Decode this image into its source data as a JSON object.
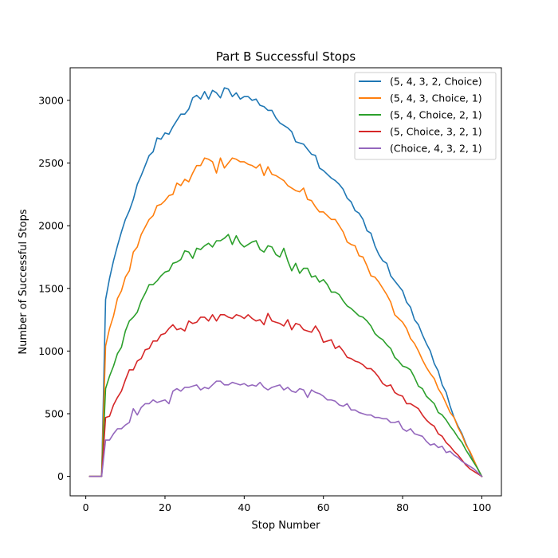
{
  "chart_data": {
    "type": "line",
    "title": "Part B Successful Stops",
    "xlabel": "Stop Number",
    "ylabel": "Number of Successful Stops",
    "xlim": [
      -3.95,
      104.95
    ],
    "ylim": [
      -155,
      3260
    ],
    "xticks": [
      0,
      20,
      40,
      60,
      80,
      100
    ],
    "yticks": [
      0,
      500,
      1000,
      1500,
      2000,
      2500,
      3000
    ],
    "legend_position": "top-right",
    "grid": false,
    "x": [
      1,
      2,
      3,
      4,
      5,
      6,
      7,
      8,
      9,
      10,
      11,
      12,
      13,
      14,
      15,
      16,
      17,
      18,
      19,
      20,
      21,
      22,
      23,
      24,
      25,
      26,
      27,
      28,
      29,
      30,
      31,
      32,
      33,
      34,
      35,
      36,
      37,
      38,
      39,
      40,
      41,
      42,
      43,
      44,
      45,
      46,
      47,
      48,
      49,
      50,
      51,
      52,
      53,
      54,
      55,
      56,
      57,
      58,
      59,
      60,
      61,
      62,
      63,
      64,
      65,
      66,
      67,
      68,
      69,
      70,
      71,
      72,
      73,
      74,
      75,
      76,
      77,
      78,
      79,
      80,
      81,
      82,
      83,
      84,
      85,
      86,
      87,
      88,
      89,
      90,
      91,
      92,
      93,
      94,
      95,
      96,
      97,
      98,
      99,
      100
    ],
    "series": [
      {
        "name": "(5, 4, 3, 2, Choice)",
        "color": "#1f77b4",
        "values": [
          0,
          0,
          0,
          0,
          1410,
          1580,
          1720,
          1840,
          1950,
          2050,
          2120,
          2210,
          2330,
          2400,
          2480,
          2560,
          2590,
          2700,
          2690,
          2740,
          2730,
          2790,
          2840,
          2890,
          2890,
          2930,
          3020,
          3040,
          3010,
          3070,
          3010,
          3080,
          3060,
          3020,
          3100,
          3090,
          3030,
          3060,
          3010,
          3030,
          3030,
          3000,
          3010,
          2960,
          2950,
          2920,
          2920,
          2860,
          2820,
          2800,
          2780,
          2750,
          2670,
          2660,
          2650,
          2610,
          2570,
          2560,
          2460,
          2440,
          2410,
          2380,
          2360,
          2330,
          2290,
          2220,
          2190,
          2120,
          2100,
          2050,
          1960,
          1940,
          1840,
          1770,
          1720,
          1700,
          1600,
          1560,
          1520,
          1480,
          1390,
          1350,
          1250,
          1210,
          1130,
          1060,
          1000,
          900,
          840,
          730,
          670,
          560,
          470,
          400,
          340,
          260,
          190,
          120,
          60,
          0
        ]
      },
      {
        "name": "(5, 4, 3, Choice, 1)",
        "color": "#ff7f0e",
        "values": [
          0,
          0,
          0,
          0,
          1040,
          1180,
          1280,
          1420,
          1480,
          1590,
          1640,
          1790,
          1830,
          1930,
          1990,
          2050,
          2080,
          2160,
          2170,
          2200,
          2240,
          2250,
          2340,
          2320,
          2370,
          2350,
          2420,
          2480,
          2480,
          2540,
          2530,
          2510,
          2420,
          2540,
          2460,
          2500,
          2540,
          2530,
          2510,
          2510,
          2490,
          2480,
          2460,
          2490,
          2400,
          2470,
          2410,
          2400,
          2380,
          2360,
          2320,
          2300,
          2280,
          2270,
          2300,
          2210,
          2200,
          2150,
          2110,
          2110,
          2080,
          2050,
          2050,
          2000,
          1950,
          1870,
          1850,
          1840,
          1760,
          1750,
          1680,
          1600,
          1590,
          1550,
          1500,
          1450,
          1390,
          1290,
          1260,
          1230,
          1180,
          1100,
          1060,
          1000,
          930,
          870,
          820,
          780,
          700,
          650,
          580,
          510,
          470,
          390,
          330,
          250,
          200,
          130,
          60,
          0
        ]
      },
      {
        "name": "(5, 4, Choice, 2, 1)",
        "color": "#2ca02c",
        "values": [
          0,
          0,
          0,
          0,
          700,
          800,
          880,
          980,
          1030,
          1160,
          1240,
          1270,
          1310,
          1400,
          1460,
          1530,
          1530,
          1560,
          1600,
          1630,
          1640,
          1700,
          1710,
          1730,
          1800,
          1790,
          1740,
          1820,
          1810,
          1840,
          1860,
          1830,
          1880,
          1880,
          1900,
          1930,
          1850,
          1920,
          1860,
          1830,
          1850,
          1870,
          1880,
          1810,
          1790,
          1840,
          1830,
          1770,
          1750,
          1820,
          1720,
          1640,
          1700,
          1620,
          1660,
          1660,
          1590,
          1600,
          1550,
          1570,
          1530,
          1470,
          1470,
          1450,
          1400,
          1360,
          1340,
          1310,
          1280,
          1270,
          1240,
          1200,
          1140,
          1110,
          1090,
          1050,
          1020,
          950,
          920,
          880,
          870,
          850,
          790,
          720,
          700,
          640,
          610,
          580,
          510,
          490,
          450,
          400,
          360,
          310,
          270,
          210,
          160,
          110,
          60,
          0
        ]
      },
      {
        "name": "(5, Choice, 3, 2, 1)",
        "color": "#d62728",
        "values": [
          0,
          0,
          0,
          0,
          470,
          480,
          570,
          630,
          680,
          770,
          850,
          850,
          920,
          940,
          1010,
          1020,
          1080,
          1080,
          1130,
          1140,
          1180,
          1210,
          1170,
          1180,
          1160,
          1240,
          1220,
          1230,
          1270,
          1270,
          1240,
          1290,
          1240,
          1290,
          1290,
          1270,
          1260,
          1290,
          1280,
          1260,
          1290,
          1260,
          1240,
          1250,
          1210,
          1300,
          1240,
          1230,
          1220,
          1200,
          1250,
          1170,
          1220,
          1210,
          1170,
          1160,
          1150,
          1200,
          1150,
          1070,
          1080,
          1090,
          1020,
          1040,
          1000,
          950,
          940,
          920,
          910,
          890,
          860,
          860,
          830,
          790,
          740,
          720,
          730,
          670,
          650,
          640,
          580,
          580,
          560,
          540,
          490,
          450,
          420,
          400,
          340,
          320,
          270,
          240,
          200,
          170,
          130,
          90,
          60,
          40,
          20,
          0
        ]
      },
      {
        "name": "(Choice, 4, 3, 2, 1)",
        "color": "#9467bd",
        "values": [
          0,
          0,
          0,
          0,
          290,
          290,
          340,
          380,
          380,
          410,
          430,
          540,
          490,
          550,
          580,
          580,
          610,
          590,
          600,
          610,
          580,
          680,
          700,
          680,
          710,
          710,
          720,
          730,
          690,
          710,
          700,
          730,
          760,
          760,
          730,
          730,
          750,
          740,
          730,
          740,
          720,
          730,
          720,
          750,
          710,
          690,
          710,
          720,
          730,
          690,
          710,
          680,
          670,
          700,
          690,
          630,
          690,
          670,
          660,
          640,
          610,
          610,
          600,
          570,
          560,
          580,
          530,
          530,
          510,
          500,
          490,
          490,
          470,
          470,
          460,
          460,
          430,
          430,
          440,
          380,
          360,
          380,
          340,
          330,
          320,
          280,
          250,
          260,
          230,
          240,
          190,
          200,
          170,
          150,
          120,
          100,
          80,
          60,
          30,
          0
        ]
      }
    ]
  }
}
